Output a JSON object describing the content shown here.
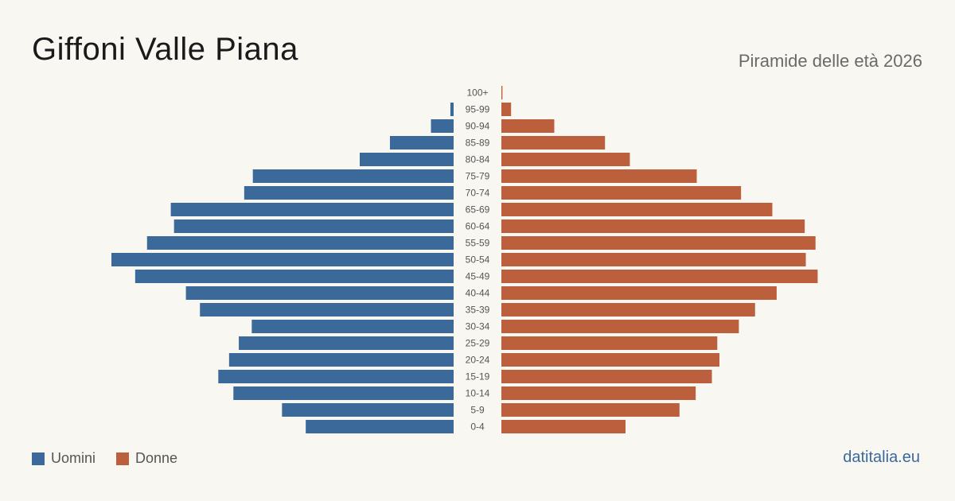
{
  "title": "Giffoni Valle Piana",
  "subtitle": "Piramide delle età 2026",
  "brand": "datitalia.eu",
  "colors": {
    "men": "#3b6a9a",
    "women": "#bb5f3d",
    "background": "#f9f7f2"
  },
  "legend": {
    "men_label": "Uomini",
    "women_label": "Donne"
  },
  "chart_data": {
    "type": "bar",
    "orientation": "horizontal",
    "categories": [
      "100+",
      "95-99",
      "90-94",
      "85-89",
      "80-84",
      "75-79",
      "70-74",
      "65-69",
      "60-64",
      "55-59",
      "50-54",
      "45-49",
      "40-44",
      "35-39",
      "30-34",
      "25-29",
      "20-24",
      "15-19",
      "10-14",
      "5-9",
      "0-4"
    ],
    "series": [
      {
        "name": "Uomini",
        "values": [
          0,
          3,
          21,
          59,
          87,
          186,
          194,
          262,
          259,
          284,
          317,
          295,
          248,
          235,
          187,
          199,
          208,
          218,
          204,
          159,
          137
        ]
      },
      {
        "name": "Donne",
        "values": [
          1,
          9,
          49,
          96,
          119,
          181,
          222,
          251,
          281,
          291,
          282,
          293,
          255,
          235,
          220,
          200,
          202,
          195,
          180,
          165,
          115
        ]
      }
    ]
  }
}
